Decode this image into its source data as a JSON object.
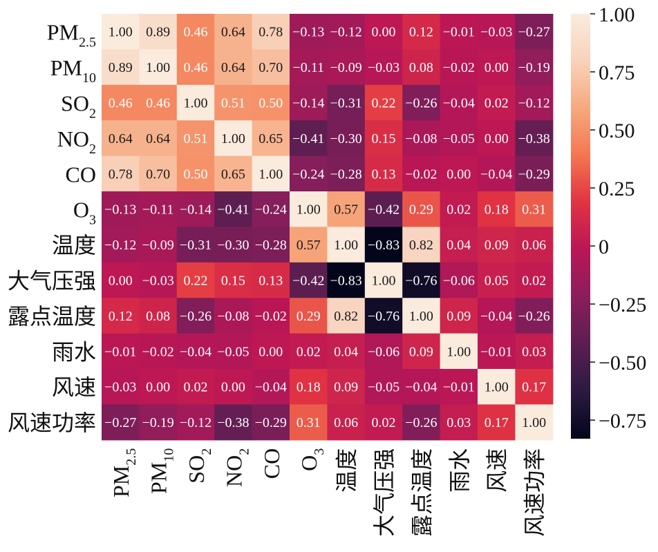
{
  "chart_data": {
    "type": "heatmap",
    "title": "",
    "xlabel": "",
    "ylabel": "",
    "variables": [
      {
        "base": "PM",
        "sub": "2.5"
      },
      {
        "base": "PM",
        "sub": "10"
      },
      {
        "base": "SO",
        "sub": "2"
      },
      {
        "base": "NO",
        "sub": "2"
      },
      {
        "base": "CO",
        "sub": ""
      },
      {
        "base": "O",
        "sub": "3"
      },
      {
        "base": "温度",
        "sub": ""
      },
      {
        "base": "大气压强",
        "sub": ""
      },
      {
        "base": "露点温度",
        "sub": ""
      },
      {
        "base": "雨水",
        "sub": ""
      },
      {
        "base": "风速",
        "sub": ""
      },
      {
        "base": "风速功率",
        "sub": ""
      }
    ],
    "values": [
      [
        1.0,
        0.89,
        0.46,
        0.64,
        0.78,
        -0.13,
        -0.12,
        0.0,
        0.12,
        -0.01,
        -0.03,
        -0.27
      ],
      [
        0.89,
        1.0,
        0.46,
        0.64,
        0.7,
        -0.11,
        -0.09,
        -0.03,
        0.08,
        -0.02,
        0.0,
        -0.19
      ],
      [
        0.46,
        0.46,
        1.0,
        0.51,
        0.5,
        -0.14,
        -0.31,
        0.22,
        -0.26,
        -0.04,
        0.02,
        -0.12
      ],
      [
        0.64,
        0.64,
        0.51,
        1.0,
        0.65,
        -0.41,
        -0.3,
        0.15,
        -0.08,
        -0.05,
        -0.0,
        -0.38
      ],
      [
        0.78,
        0.7,
        0.5,
        0.65,
        1.0,
        -0.24,
        -0.28,
        0.13,
        -0.02,
        -0.0,
        -0.04,
        -0.29
      ],
      [
        -0.13,
        -0.11,
        -0.14,
        -0.41,
        -0.24,
        1.0,
        0.57,
        -0.42,
        0.29,
        0.02,
        0.18,
        0.31
      ],
      [
        -0.12,
        -0.09,
        -0.31,
        -0.3,
        -0.28,
        0.57,
        1.0,
        -0.83,
        0.82,
        0.04,
        0.09,
        0.06
      ],
      [
        0.0,
        -0.03,
        0.22,
        0.15,
        0.13,
        -0.42,
        -0.83,
        1.0,
        -0.76,
        -0.06,
        0.05,
        0.02
      ],
      [
        0.12,
        0.08,
        -0.26,
        -0.08,
        -0.02,
        0.29,
        0.82,
        -0.76,
        1.0,
        0.09,
        -0.04,
        -0.26
      ],
      [
        -0.01,
        -0.02,
        -0.04,
        -0.05,
        -0.0,
        0.02,
        0.04,
        -0.06,
        0.09,
        1.0,
        -0.01,
        0.03
      ],
      [
        -0.03,
        0.0,
        0.02,
        -0.0,
        -0.04,
        0.18,
        0.09,
        -0.05,
        -0.04,
        -0.01,
        1.0,
        0.17
      ],
      [
        -0.27,
        -0.19,
        -0.12,
        -0.38,
        -0.29,
        0.31,
        0.06,
        0.02,
        -0.26,
        0.03,
        0.17,
        1.0
      ]
    ],
    "colorbar": {
      "min": -0.83,
      "max": 1.0,
      "ticks": [
        1.0,
        0.75,
        0.5,
        0.25,
        0,
        -0.25,
        -0.5,
        -0.75
      ],
      "tick_labels": [
        "1.00",
        "0.75",
        "0.50",
        "0.25",
        "0",
        "−0.25",
        "−0.50",
        "−0.75"
      ],
      "colormap": "rocket",
      "colormap_stops": [
        "#03051a",
        "#2b1a40",
        "#5b1e51",
        "#8a1e5b",
        "#ba1656",
        "#e13342",
        "#f37651",
        "#f6a97e",
        "#f8d2bc",
        "#faebdd"
      ]
    },
    "grid": false,
    "legend": "colorbar-right"
  }
}
